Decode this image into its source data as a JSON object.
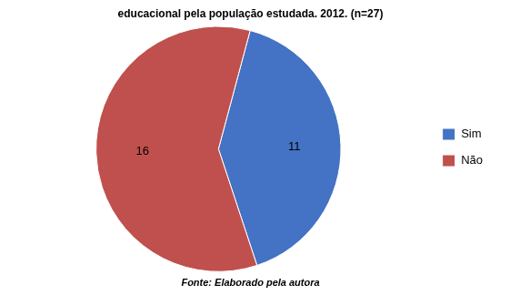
{
  "chart_data": {
    "type": "pie",
    "title": "educacional pela população estudada. 2012. (n=27)",
    "annotation": "Fonte: Elaborado pela autora",
    "categories": [
      "Sim",
      "Não"
    ],
    "values": [
      11,
      16
    ],
    "colors": [
      "#4472C4",
      "#C0504D"
    ],
    "data_labels": true,
    "legend": "right"
  }
}
